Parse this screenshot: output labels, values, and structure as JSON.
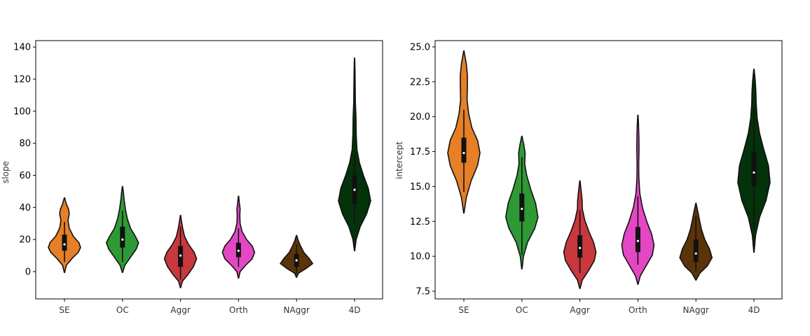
{
  "chart_data": [
    {
      "type": "violin",
      "title": "",
      "xlabel": "",
      "ylabel": "slope",
      "ylim": [
        -17,
        144
      ],
      "yticks": [
        0,
        20,
        40,
        60,
        80,
        100,
        120,
        140
      ],
      "categories": [
        "SE",
        "OC",
        "Aggr",
        "Orth",
        "NAggr",
        "4D"
      ],
      "colors": [
        "#e67f26",
        "#2e9a35",
        "#c9383c",
        "#e447c4",
        "#5a3408",
        "#04320a"
      ],
      "violins": [
        {
          "name": "SE",
          "min": -0.5,
          "max": 46,
          "q1": 13,
          "median": 17,
          "q3": 23,
          "whisker_low": 6,
          "whisker_high": 31,
          "profile": [
            [
              -0.5,
              0.01
            ],
            [
              4,
              0.12
            ],
            [
              8,
              0.45
            ],
            [
              12,
              0.85
            ],
            [
              15,
              1.0
            ],
            [
              18,
              0.9
            ],
            [
              22,
              0.55
            ],
            [
              27,
              0.3
            ],
            [
              32,
              0.22
            ],
            [
              36,
              0.3
            ],
            [
              39,
              0.25
            ],
            [
              42,
              0.12
            ],
            [
              46,
              0.01
            ]
          ]
        },
        {
          "name": "OC",
          "min": -0.5,
          "max": 53,
          "q1": 15,
          "median": 20,
          "q3": 28,
          "whisker_low": 6,
          "whisker_high": 38,
          "profile": [
            [
              -0.5,
              0.01
            ],
            [
              4,
              0.15
            ],
            [
              9,
              0.5
            ],
            [
              14,
              0.85
            ],
            [
              18,
              1.0
            ],
            [
              22,
              0.8
            ],
            [
              27,
              0.5
            ],
            [
              33,
              0.3
            ],
            [
              39,
              0.18
            ],
            [
              45,
              0.1
            ],
            [
              49,
              0.06
            ],
            [
              53,
              0.01
            ]
          ]
        },
        {
          "name": "Aggr",
          "min": -10,
          "max": 35,
          "q1": 3,
          "median": 10,
          "q3": 16,
          "whisker_low": -5,
          "whisker_high": 28,
          "profile": [
            [
              -10,
              0.01
            ],
            [
              -6,
              0.12
            ],
            [
              -2,
              0.45
            ],
            [
              3,
              0.8
            ],
            [
              8,
              1.0
            ],
            [
              12,
              0.85
            ],
            [
              17,
              0.5
            ],
            [
              22,
              0.25
            ],
            [
              27,
              0.14
            ],
            [
              31,
              0.07
            ],
            [
              35,
              0.01
            ]
          ]
        },
        {
          "name": "Orth",
          "min": -4,
          "max": 47,
          "q1": 9,
          "median": 13,
          "q3": 18,
          "whisker_low": 3,
          "whisker_high": 27,
          "profile": [
            [
              -4,
              0.01
            ],
            [
              0,
              0.1
            ],
            [
              4,
              0.45
            ],
            [
              8,
              0.85
            ],
            [
              12,
              1.0
            ],
            [
              16,
              0.85
            ],
            [
              20,
              0.5
            ],
            [
              25,
              0.22
            ],
            [
              30,
              0.1
            ],
            [
              35,
              0.08
            ],
            [
              39,
              0.1
            ],
            [
              43,
              0.05
            ],
            [
              47,
              0.01
            ]
          ]
        },
        {
          "name": "NAggr",
          "min": -3.5,
          "max": 22.5,
          "q1": 3,
          "median": 7,
          "q3": 11,
          "whisker_low": -1,
          "whisker_high": 17,
          "profile": [
            [
              -3.5,
              0.01
            ],
            [
              -1,
              0.12
            ],
            [
              2,
              0.6
            ],
            [
              5,
              1.0
            ],
            [
              8,
              0.8
            ],
            [
              12,
              0.45
            ],
            [
              16,
              0.25
            ],
            [
              19,
              0.12
            ],
            [
              22.5,
              0.01
            ]
          ]
        },
        {
          "name": "4D",
          "min": 13,
          "max": 133,
          "q1": 42,
          "median": 51,
          "q3": 60,
          "whisker_low": 30,
          "whisker_high": 73,
          "profile": [
            [
              13,
              0.01
            ],
            [
              20,
              0.1
            ],
            [
              28,
              0.35
            ],
            [
              36,
              0.75
            ],
            [
              44,
              1.0
            ],
            [
              52,
              0.85
            ],
            [
              60,
              0.55
            ],
            [
              68,
              0.3
            ],
            [
              76,
              0.15
            ],
            [
              86,
              0.1
            ],
            [
              96,
              0.09
            ],
            [
              106,
              0.05
            ],
            [
              116,
              0.04
            ],
            [
              124,
              0.03
            ],
            [
              133,
              0.01
            ]
          ]
        }
      ]
    },
    {
      "type": "violin",
      "title": "",
      "xlabel": "",
      "ylabel": "intercept",
      "ylim": [
        6.95,
        25.45
      ],
      "yticks": [
        7.5,
        10.0,
        12.5,
        15.0,
        17.5,
        20.0,
        22.5,
        25.0
      ],
      "ytick_labels": [
        "7.5",
        "10.0",
        "12.5",
        "15.0",
        "17.5",
        "20.0",
        "22.5",
        "25.0"
      ],
      "categories": [
        "SE",
        "OC",
        "Aggr",
        "Orth",
        "NAggr",
        "4D"
      ],
      "colors": [
        "#e67f26",
        "#2e9a35",
        "#c9383c",
        "#e447c4",
        "#5a3408",
        "#04320a"
      ],
      "violins": [
        {
          "name": "SE",
          "min": 13.1,
          "max": 24.7,
          "q1": 16.7,
          "median": 17.4,
          "q3": 18.5,
          "whisker_low": 14.6,
          "whisker_high": 20.5,
          "profile": [
            [
              13.1,
              0.01
            ],
            [
              14.2,
              0.15
            ],
            [
              15.4,
              0.45
            ],
            [
              16.5,
              0.85
            ],
            [
              17.4,
              1.0
            ],
            [
              18.3,
              0.85
            ],
            [
              19.2,
              0.5
            ],
            [
              20.2,
              0.3
            ],
            [
              21.2,
              0.2
            ],
            [
              22.2,
              0.22
            ],
            [
              23.0,
              0.22
            ],
            [
              23.8,
              0.15
            ],
            [
              24.7,
              0.01
            ]
          ]
        },
        {
          "name": "OC",
          "min": 9.1,
          "max": 18.6,
          "q1": 12.5,
          "median": 13.4,
          "q3": 14.5,
          "whisker_low": 10.1,
          "whisker_high": 17.1,
          "profile": [
            [
              9.1,
              0.01
            ],
            [
              10.0,
              0.1
            ],
            [
              11.0,
              0.35
            ],
            [
              12.0,
              0.8
            ],
            [
              12.8,
              1.0
            ],
            [
              13.8,
              0.85
            ],
            [
              14.8,
              0.55
            ],
            [
              15.8,
              0.3
            ],
            [
              16.6,
              0.18
            ],
            [
              17.4,
              0.2
            ],
            [
              18.0,
              0.12
            ],
            [
              18.6,
              0.01
            ]
          ]
        },
        {
          "name": "Aggr",
          "min": 7.7,
          "max": 15.4,
          "q1": 9.9,
          "median": 10.6,
          "q3": 11.5,
          "whisker_low": 8.8,
          "whisker_high": 13.3,
          "profile": [
            [
              7.7,
              0.01
            ],
            [
              8.3,
              0.15
            ],
            [
              9.0,
              0.55
            ],
            [
              9.7,
              0.9
            ],
            [
              10.3,
              1.0
            ],
            [
              11.0,
              0.85
            ],
            [
              11.8,
              0.55
            ],
            [
              12.6,
              0.3
            ],
            [
              13.4,
              0.15
            ],
            [
              14.0,
              0.14
            ],
            [
              14.7,
              0.08
            ],
            [
              15.4,
              0.01
            ]
          ]
        },
        {
          "name": "Orth",
          "min": 8.0,
          "max": 20.1,
          "q1": 10.3,
          "median": 11.1,
          "q3": 12.1,
          "whisker_low": 9.4,
          "whisker_high": 14.3,
          "profile": [
            [
              8.0,
              0.01
            ],
            [
              8.6,
              0.15
            ],
            [
              9.3,
              0.5
            ],
            [
              10.1,
              0.9
            ],
            [
              10.8,
              1.0
            ],
            [
              11.6,
              0.85
            ],
            [
              12.5,
              0.55
            ],
            [
              13.5,
              0.28
            ],
            [
              14.5,
              0.12
            ],
            [
              15.6,
              0.06
            ],
            [
              16.6,
              0.05
            ],
            [
              17.6,
              0.07
            ],
            [
              18.6,
              0.06
            ],
            [
              19.4,
              0.04
            ],
            [
              20.1,
              0.01
            ]
          ]
        },
        {
          "name": "NAggr",
          "min": 8.3,
          "max": 13.8,
          "q1": 9.6,
          "median": 10.2,
          "q3": 11.2,
          "whisker_low": 8.9,
          "whisker_high": 12.9,
          "profile": [
            [
              8.3,
              0.01
            ],
            [
              8.8,
              0.25
            ],
            [
              9.3,
              0.7
            ],
            [
              9.9,
              1.0
            ],
            [
              10.5,
              0.85
            ],
            [
              11.2,
              0.55
            ],
            [
              11.9,
              0.35
            ],
            [
              12.6,
              0.22
            ],
            [
              13.2,
              0.12
            ],
            [
              13.8,
              0.01
            ]
          ]
        },
        {
          "name": "4D",
          "min": 10.3,
          "max": 23.4,
          "q1": 15.0,
          "median": 16.0,
          "q3": 17.5,
          "whisker_low": 12.0,
          "whisker_high": 20.7,
          "profile": [
            [
              10.3,
              0.01
            ],
            [
              11.5,
              0.1
            ],
            [
              12.8,
              0.35
            ],
            [
              14.0,
              0.75
            ],
            [
              15.3,
              1.0
            ],
            [
              16.5,
              0.9
            ],
            [
              17.7,
              0.6
            ],
            [
              18.8,
              0.35
            ],
            [
              19.9,
              0.2
            ],
            [
              20.9,
              0.14
            ],
            [
              21.8,
              0.12
            ],
            [
              22.6,
              0.08
            ],
            [
              23.4,
              0.01
            ]
          ]
        }
      ]
    }
  ]
}
